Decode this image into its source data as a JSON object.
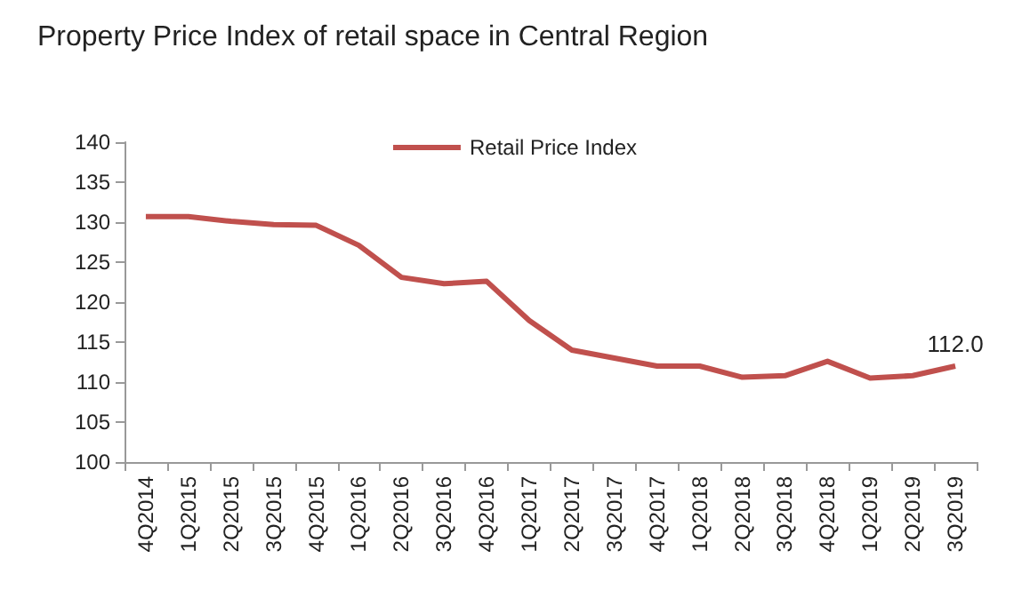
{
  "chart_data": {
    "type": "line",
    "title": "Property Price Index of retail space in Central Region",
    "categories": [
      "4Q2014",
      "1Q2015",
      "2Q2015",
      "3Q2015",
      "4Q2015",
      "1Q2016",
      "2Q2016",
      "3Q2016",
      "4Q2016",
      "1Q2017",
      "2Q2017",
      "3Q2017",
      "4Q2017",
      "1Q2018",
      "2Q2018",
      "3Q2018",
      "4Q2018",
      "1Q2019",
      "2Q2019",
      "3Q2019"
    ],
    "series": [
      {
        "name": "Retail Price Index",
        "color": "#c0504d",
        "values": [
          130.7,
          130.7,
          130.1,
          129.7,
          129.6,
          127.1,
          123.1,
          122.3,
          122.6,
          117.7,
          114.0,
          113.0,
          112.0,
          112.0,
          110.6,
          110.8,
          112.6,
          110.5,
          110.8,
          112.0
        ],
        "value_labels": [
          null,
          null,
          null,
          null,
          null,
          null,
          null,
          null,
          null,
          null,
          null,
          null,
          null,
          null,
          null,
          null,
          null,
          null,
          null,
          "112.0"
        ]
      }
    ],
    "ylim": [
      100,
      140
    ],
    "yticks": [
      100,
      105,
      110,
      115,
      120,
      125,
      130,
      135,
      140
    ],
    "grid": false,
    "legend": "top",
    "marker": "none",
    "line_style": "solid"
  }
}
